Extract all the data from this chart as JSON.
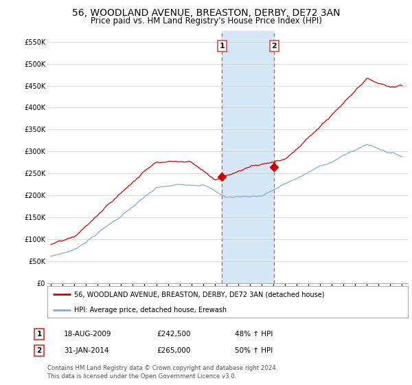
{
  "title": "56, WOODLAND AVENUE, BREASTON, DERBY, DE72 3AN",
  "subtitle": "Price paid vs. HM Land Registry's House Price Index (HPI)",
  "title_fontsize": 10,
  "subtitle_fontsize": 8.5,
  "ylabel_ticks": [
    "£0",
    "£50K",
    "£100K",
    "£150K",
    "£200K",
    "£250K",
    "£300K",
    "£350K",
    "£400K",
    "£450K",
    "£500K",
    "£550K"
  ],
  "ytick_vals": [
    0,
    50000,
    100000,
    150000,
    200000,
    250000,
    300000,
    350000,
    400000,
    450000,
    500000,
    550000
  ],
  "ylim": [
    0,
    575000
  ],
  "xlim_start": 1994.7,
  "xlim_end": 2025.5,
  "xticks": [
    1995,
    1996,
    1997,
    1998,
    1999,
    2000,
    2001,
    2002,
    2003,
    2004,
    2005,
    2006,
    2007,
    2008,
    2009,
    2010,
    2011,
    2012,
    2013,
    2014,
    2015,
    2016,
    2017,
    2018,
    2019,
    2020,
    2021,
    2022,
    2023,
    2024,
    2025
  ],
  "sale1_date": 2009.63,
  "sale1_price": 242500,
  "sale1_label": "1",
  "sale2_date": 2014.08,
  "sale2_price": 265000,
  "sale2_label": "2",
  "highlight_color": "#d6e8f7",
  "vline_color": "#d05050",
  "house_line_color": "#cc0000",
  "hpi_line_color": "#88aacc",
  "legend_house": "56, WOODLAND AVENUE, BREASTON, DERBY, DE72 3AN (detached house)",
  "legend_hpi": "HPI: Average price, detached house, Erewash",
  "annotation1_date": "18-AUG-2009",
  "annotation1_price": "£242,500",
  "annotation1_pct": "48% ↑ HPI",
  "annotation2_date": "31-JAN-2014",
  "annotation2_price": "£265,000",
  "annotation2_pct": "50% ↑ HPI",
  "footer": "Contains HM Land Registry data © Crown copyright and database right 2024.\nThis data is licensed under the Open Government Licence v3.0.",
  "background_color": "#ffffff",
  "grid_color": "#cccccc"
}
